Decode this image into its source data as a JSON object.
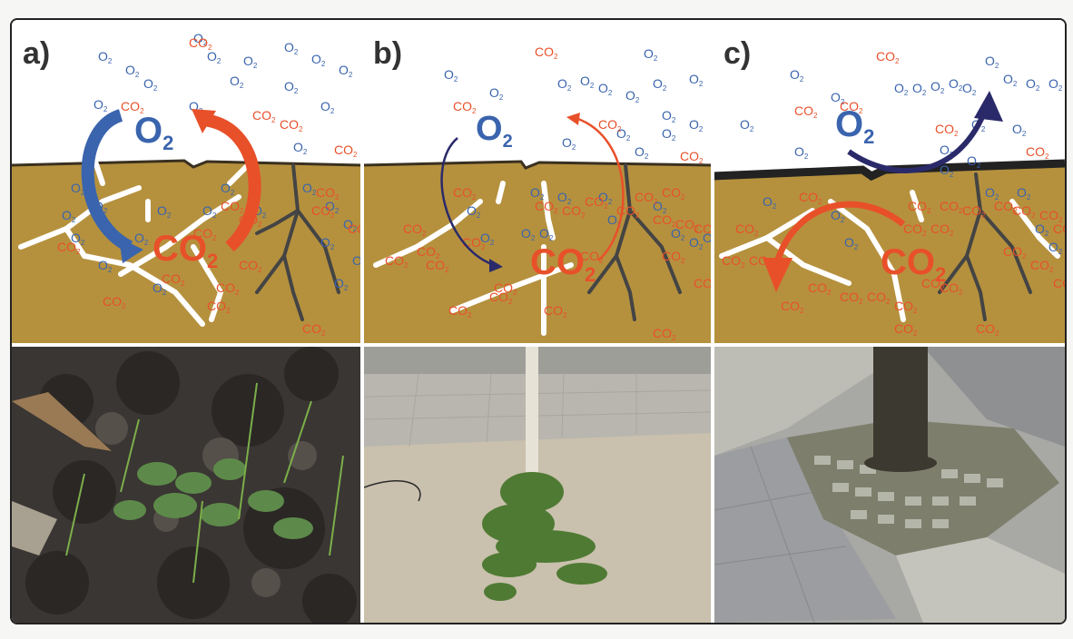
{
  "colors": {
    "o2": "#3a64ad",
    "co2": "#e8502a",
    "soil": "#b5913e",
    "root": "#444444",
    "crack": "#ffffff"
  },
  "panels": [
    {
      "label": "a)",
      "big_o2": {
        "text": "O",
        "sub": "2"
      },
      "big_co2": {
        "text": "CO",
        "sub": "2"
      },
      "air_o2": [
        [
          95,
          45
        ],
        [
          200,
          25
        ],
        [
          125,
          60
        ],
        [
          215,
          45
        ],
        [
          255,
          50
        ],
        [
          300,
          35
        ],
        [
          330,
          48
        ],
        [
          360,
          60
        ],
        [
          145,
          75
        ],
        [
          90,
          98
        ],
        [
          195,
          100
        ],
        [
          240,
          72
        ],
        [
          300,
          78
        ],
        [
          340,
          100
        ],
        [
          310,
          145
        ]
      ],
      "air_co2": [
        [
          195,
          30
        ],
        [
          120,
          100
        ],
        [
          265,
          110
        ],
        [
          295,
          120
        ],
        [
          355,
          148
        ]
      ],
      "soil_o2": [
        [
          65,
          190
        ],
        [
          90,
          210
        ],
        [
          55,
          220
        ],
        [
          65,
          245
        ],
        [
          95,
          275
        ],
        [
          160,
          215
        ],
        [
          210,
          215
        ],
        [
          230,
          190
        ],
        [
          265,
          215
        ],
        [
          320,
          190
        ],
        [
          345,
          210
        ],
        [
          365,
          230
        ],
        [
          340,
          250
        ],
        [
          375,
          270
        ],
        [
          355,
          295
        ],
        [
          155,
          300
        ],
        [
          135,
          245
        ]
      ],
      "soil_co2": [
        [
          50,
          255
        ],
        [
          200,
          240
        ],
        [
          230,
          210
        ],
        [
          250,
          225
        ],
        [
          250,
          275
        ],
        [
          225,
          300
        ],
        [
          215,
          320
        ],
        [
          165,
          290
        ],
        [
          100,
          315
        ],
        [
          335,
          195
        ],
        [
          330,
          215
        ],
        [
          370,
          235
        ],
        [
          320,
          345
        ]
      ],
      "sub": "2",
      "photo": "mulch-soil-with-seedlings"
    },
    {
      "label": "b)",
      "big_o2": {
        "text": "O",
        "sub": "2"
      },
      "big_co2": {
        "text": "CO",
        "sub": "2"
      },
      "air_o2": [
        [
          90,
          65
        ],
        [
          140,
          85
        ],
        [
          215,
          75
        ],
        [
          240,
          72
        ],
        [
          260,
          80
        ],
        [
          290,
          88
        ],
        [
          310,
          42
        ],
        [
          320,
          75
        ],
        [
          330,
          110
        ],
        [
          360,
          70
        ],
        [
          280,
          130
        ],
        [
          300,
          150
        ],
        [
          330,
          130
        ],
        [
          360,
          120
        ],
        [
          220,
          140
        ]
      ],
      "air_co2": [
        [
          190,
          40
        ],
        [
          100,
          100
        ],
        [
          260,
          120
        ],
        [
          350,
          155
        ]
      ],
      "soil_o2": [
        [
          115,
          215
        ],
        [
          130,
          245
        ],
        [
          185,
          195
        ],
        [
          175,
          240
        ],
        [
          195,
          240
        ],
        [
          215,
          200
        ],
        [
          260,
          200
        ],
        [
          270,
          225
        ],
        [
          320,
          210
        ],
        [
          340,
          240
        ],
        [
          360,
          250
        ],
        [
          375,
          245
        ]
      ],
      "soil_co2": [
        [
          100,
          195
        ],
        [
          45,
          235
        ],
        [
          60,
          260
        ],
        [
          25,
          270
        ],
        [
          70,
          275
        ],
        [
          110,
          250
        ],
        [
          190,
          210
        ],
        [
          220,
          215
        ],
        [
          245,
          205
        ],
        [
          280,
          215
        ],
        [
          300,
          200
        ],
        [
          330,
          195
        ],
        [
          320,
          225
        ],
        [
          345,
          230
        ],
        [
          365,
          235
        ],
        [
          330,
          265
        ],
        [
          365,
          295
        ],
        [
          145,
          300
        ],
        [
          95,
          325
        ],
        [
          140,
          310
        ],
        [
          200,
          325
        ],
        [
          320,
          350
        ],
        [
          240,
          265
        ]
      ],
      "sub": "2",
      "photo": "compacted-soil-with-moss-and-young-tree"
    },
    {
      "label": "c)",
      "big_o2": {
        "text": "O",
        "sub": "2"
      },
      "big_co2": {
        "text": "CO",
        "sub": "2"
      },
      "air_o2": [
        [
          85,
          65
        ],
        [
          130,
          90
        ],
        [
          200,
          80
        ],
        [
          220,
          80
        ],
        [
          240,
          78
        ],
        [
          260,
          75
        ],
        [
          275,
          80
        ],
        [
          300,
          50
        ],
        [
          320,
          70
        ],
        [
          345,
          75
        ],
        [
          370,
          75
        ],
        [
          30,
          120
        ],
        [
          285,
          120
        ],
        [
          330,
          125
        ],
        [
          90,
          150
        ],
        [
          280,
          160
        ],
        [
          250,
          148
        ],
        [
          250,
          170
        ]
      ],
      "air_co2": [
        [
          180,
          45
        ],
        [
          90,
          105
        ],
        [
          140,
          100
        ],
        [
          245,
          125
        ],
        [
          345,
          150
        ]
      ],
      "soil_o2": [
        [
          55,
          205
        ],
        [
          130,
          220
        ],
        [
          145,
          250
        ],
        [
          300,
          195
        ],
        [
          335,
          195
        ],
        [
          355,
          235
        ],
        [
          370,
          255
        ]
      ],
      "soil_co2": [
        [
          95,
          200
        ],
        [
          215,
          210
        ],
        [
          250,
          210
        ],
        [
          275,
          215
        ],
        [
          310,
          210
        ],
        [
          330,
          215
        ],
        [
          360,
          220
        ],
        [
          375,
          235
        ],
        [
          25,
          235
        ],
        [
          10,
          270
        ],
        [
          40,
          270
        ],
        [
          210,
          235
        ],
        [
          240,
          235
        ],
        [
          105,
          300
        ],
        [
          140,
          310
        ],
        [
          170,
          310
        ],
        [
          200,
          320
        ],
        [
          230,
          295
        ],
        [
          250,
          300
        ],
        [
          320,
          260
        ],
        [
          350,
          275
        ],
        [
          375,
          295
        ],
        [
          290,
          345
        ],
        [
          75,
          320
        ],
        [
          200,
          345
        ]
      ],
      "sub": "2",
      "photo": "tree-base-surrounded-by-paving-stones"
    }
  ]
}
